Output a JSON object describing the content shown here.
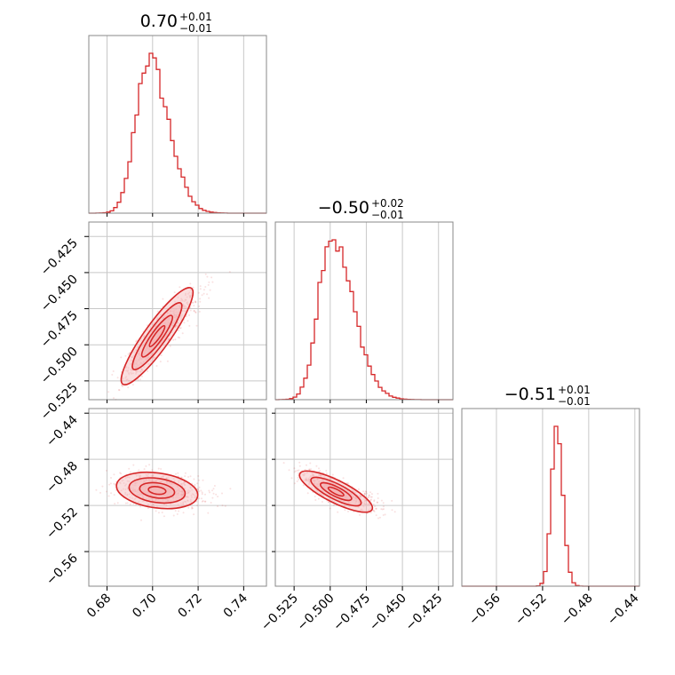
{
  "chart_data": {
    "type": "corner",
    "color": "#d62728",
    "fill_color": "#f4b6b7",
    "grid": true,
    "parameters": [
      {
        "title": "0.70",
        "err_plus": "+0.01",
        "err_minus": "−0.01",
        "range": [
          0.672,
          0.75
        ],
        "ticks": [
          0.68,
          0.7,
          0.72,
          0.74
        ],
        "tick_labels": [
          "0.68",
          "0.70",
          "0.72",
          "0.74"
        ],
        "hist_peak": 0.698,
        "hist_sigma": 0.0055,
        "hist_skew": 1.6
      },
      {
        "title": "−0.50",
        "err_plus": "+0.02",
        "err_minus": "−0.01",
        "range": [
          -0.538,
          -0.415
        ],
        "ticks": [
          -0.525,
          -0.5,
          -0.475,
          -0.45,
          -0.425
        ],
        "tick_labels": [
          "−0.525",
          "−0.500",
          "−0.475",
          "−0.450",
          "−0.425"
        ],
        "hist_peak": -0.5,
        "hist_sigma": 0.0085,
        "hist_skew": 1.8
      },
      {
        "title": "−0.51",
        "err_plus": "+0.01",
        "err_minus": "−0.01",
        "range": [
          -0.59,
          -0.436
        ],
        "ticks": [
          -0.56,
          -0.52,
          -0.48,
          -0.44
        ],
        "tick_labels": [
          "−0.56",
          "−0.52",
          "−0.48",
          "−0.44"
        ],
        "hist_peak": -0.508,
        "hist_sigma": 0.0045,
        "hist_skew": 1.2
      }
    ],
    "pairs": [
      {
        "x": 0,
        "y": 1,
        "center": [
          0.702,
          -0.494
        ],
        "sx": 0.0075,
        "sy": 0.016,
        "rho": 0.9
      },
      {
        "x": 0,
        "y": 2,
        "center": [
          0.702,
          -0.507
        ],
        "sx": 0.0085,
        "sy": 0.0075,
        "rho": -0.25
      },
      {
        "x": 1,
        "y": 2,
        "center": [
          -0.496,
          -0.508
        ],
        "sx": 0.012,
        "sy": 0.0085,
        "rho": -0.8
      }
    ]
  }
}
